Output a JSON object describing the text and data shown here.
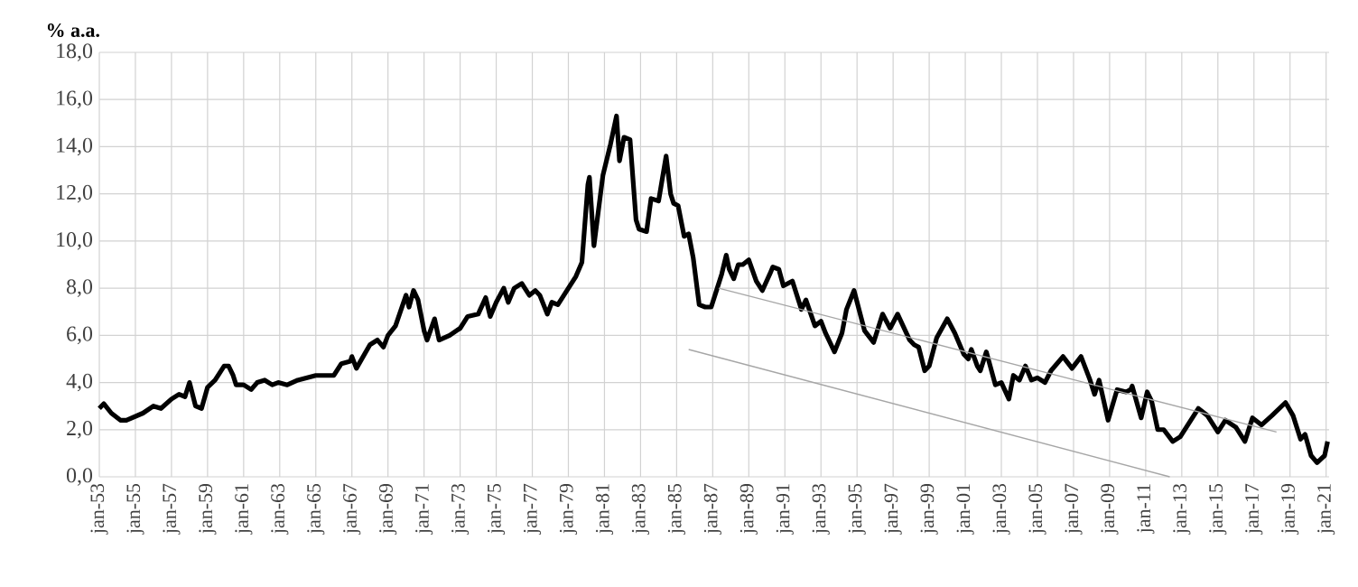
{
  "chart_data": {
    "type": "line",
    "ylabel": "% a.a.",
    "grid": true,
    "xlim": [
      "1953-01",
      "2021-03"
    ],
    "ylim": [
      0,
      18
    ],
    "yticks": [
      {
        "value": 0,
        "label": "0,0"
      },
      {
        "value": 2,
        "label": "2,0"
      },
      {
        "value": 4,
        "label": "4,0"
      },
      {
        "value": 6,
        "label": "6,0"
      },
      {
        "value": 8,
        "label": "8,0"
      },
      {
        "value": 10,
        "label": "10,0"
      },
      {
        "value": 12,
        "label": "12,0"
      },
      {
        "value": 14,
        "label": "14,0"
      },
      {
        "value": 16,
        "label": "16,0"
      },
      {
        "value": 18,
        "label": "18,0"
      }
    ],
    "xticks": [
      {
        "value": "1953-01",
        "label": "jan-53"
      },
      {
        "value": "1955-01",
        "label": "jan-55"
      },
      {
        "value": "1957-01",
        "label": "jan-57"
      },
      {
        "value": "1959-01",
        "label": "jan-59"
      },
      {
        "value": "1961-01",
        "label": "jan-61"
      },
      {
        "value": "1963-01",
        "label": "jan-63"
      },
      {
        "value": "1965-01",
        "label": "jan-65"
      },
      {
        "value": "1967-01",
        "label": "jan-67"
      },
      {
        "value": "1969-01",
        "label": "jan-69"
      },
      {
        "value": "1971-01",
        "label": "jan-71"
      },
      {
        "value": "1973-01",
        "label": "jan-73"
      },
      {
        "value": "1975-01",
        "label": "jan-75"
      },
      {
        "value": "1977-01",
        "label": "jan-77"
      },
      {
        "value": "1979-01",
        "label": "jan-79"
      },
      {
        "value": "1981-01",
        "label": "jan-81"
      },
      {
        "value": "1983-01",
        "label": "jan-83"
      },
      {
        "value": "1985-01",
        "label": "jan-85"
      },
      {
        "value": "1987-01",
        "label": "jan-87"
      },
      {
        "value": "1989-01",
        "label": "jan-89"
      },
      {
        "value": "1991-01",
        "label": "jan-91"
      },
      {
        "value": "1993-01",
        "label": "jan-93"
      },
      {
        "value": "1995-01",
        "label": "jan-95"
      },
      {
        "value": "1997-01",
        "label": "jan-97"
      },
      {
        "value": "1999-01",
        "label": "jan-99"
      },
      {
        "value": "2001-01",
        "label": "jan-01"
      },
      {
        "value": "2003-01",
        "label": "jan-03"
      },
      {
        "value": "2005-01",
        "label": "jan-05"
      },
      {
        "value": "2007-01",
        "label": "jan-07"
      },
      {
        "value": "2009-01",
        "label": "jan-09"
      },
      {
        "value": "2011-01",
        "label": "jan-11"
      },
      {
        "value": "2013-01",
        "label": "jan-13"
      },
      {
        "value": "2015-01",
        "label": "jan-15"
      },
      {
        "value": "2017-01",
        "label": "jan-17"
      },
      {
        "value": "2019-01",
        "label": "jan-19"
      },
      {
        "value": "2021-01",
        "label": "jan-21"
      }
    ],
    "series": [
      {
        "color": "#000000",
        "x": [
          "1953-01",
          "1953-04",
          "1953-09",
          "1954-03",
          "1954-07",
          "1955-06",
          "1956-01",
          "1956-06",
          "1957-01",
          "1957-06",
          "1957-10",
          "1958-01",
          "1958-05",
          "1958-09",
          "1959-01",
          "1959-06",
          "1959-12",
          "1960-03",
          "1960-06",
          "1960-08",
          "1961-01",
          "1961-06",
          "1961-10",
          "1962-03",
          "1962-08",
          "1962-12",
          "1963-06",
          "1964-01",
          "1965-01",
          "1966-01",
          "1966-06",
          "1966-12",
          "1967-01",
          "1967-04",
          "1968-01",
          "1968-06",
          "1968-10",
          "1969-01",
          "1969-06",
          "1970-01",
          "1970-03",
          "1970-06",
          "1970-09",
          "1971-01",
          "1971-03",
          "1971-08",
          "1971-11",
          "1972-06",
          "1973-01",
          "1973-06",
          "1974-01",
          "1974-06",
          "1974-09",
          "1975-01",
          "1975-06",
          "1975-09",
          "1976-01",
          "1976-06",
          "1976-11",
          "1977-03",
          "1977-06",
          "1977-11",
          "1978-02",
          "1978-06",
          "1979-01",
          "1979-06",
          "1979-10",
          "1980-02",
          "1980-03",
          "1980-06",
          "1980-12",
          "1981-05",
          "1981-09",
          "1981-11",
          "1982-02",
          "1982-06",
          "1982-10",
          "1982-12",
          "1983-05",
          "1983-08",
          "1984-01",
          "1984-06",
          "1984-09",
          "1984-11",
          "1985-02",
          "1985-06",
          "1985-09",
          "1985-12",
          "1986-04",
          "1986-08",
          "1986-12",
          "1987-04",
          "1987-07",
          "1987-10",
          "1987-12",
          "1988-03",
          "1988-06",
          "1988-09",
          "1989-01",
          "1989-06",
          "1989-10",
          "1990-03",
          "1990-05",
          "1990-09",
          "1990-12",
          "1991-06",
          "1991-12",
          "1992-03",
          "1992-09",
          "1993-01",
          "1993-04",
          "1993-10",
          "1994-03",
          "1994-06",
          "1994-11",
          "1995-06",
          "1995-12",
          "1996-04",
          "1996-06",
          "1996-11",
          "1997-04",
          "1997-12",
          "1998-03",
          "1998-06",
          "1998-10",
          "1999-01",
          "1999-06",
          "2000-01",
          "2000-06",
          "2000-12",
          "2001-03",
          "2001-05",
          "2001-09",
          "2001-11",
          "2002-03",
          "2002-09",
          "2003-01",
          "2003-06",
          "2003-09",
          "2004-01",
          "2004-05",
          "2004-09",
          "2005-01",
          "2005-06",
          "2005-10",
          "2006-06",
          "2006-12",
          "2007-06",
          "2007-12",
          "2008-03",
          "2008-06",
          "2008-12",
          "2009-06",
          "2009-12",
          "2010-03",
          "2010-04",
          "2010-10",
          "2011-02",
          "2011-05",
          "2011-09",
          "2012-01",
          "2012-07",
          "2012-12",
          "2013-06",
          "2013-12",
          "2014-06",
          "2015-01",
          "2015-06",
          "2016-01",
          "2016-07",
          "2016-12",
          "2017-06",
          "2018-01",
          "2018-10",
          "2019-03",
          "2019-08",
          "2019-11",
          "2020-03",
          "2020-07",
          "2020-12",
          "2021-02"
        ],
        "values": [
          2.9,
          3.1,
          2.7,
          2.4,
          2.4,
          2.7,
          3.0,
          2.9,
          3.3,
          3.5,
          3.4,
          4.0,
          3.0,
          2.9,
          3.8,
          4.1,
          4.7,
          4.7,
          4.3,
          3.9,
          3.9,
          3.7,
          4.0,
          4.1,
          3.9,
          4.0,
          3.9,
          4.1,
          4.3,
          4.3,
          4.8,
          4.9,
          5.1,
          4.6,
          5.6,
          5.8,
          5.5,
          6.0,
          6.4,
          7.7,
          7.2,
          7.9,
          7.5,
          6.2,
          5.8,
          6.7,
          5.8,
          6.0,
          6.3,
          6.8,
          6.9,
          7.6,
          6.8,
          7.4,
          8.0,
          7.4,
          8.0,
          8.2,
          7.7,
          7.9,
          7.7,
          6.9,
          7.4,
          7.3,
          8.0,
          8.5,
          9.1,
          12.4,
          12.7,
          9.8,
          12.8,
          14.1,
          15.3,
          13.4,
          14.4,
          14.3,
          10.9,
          10.5,
          10.4,
          11.8,
          11.7,
          13.6,
          12.0,
          11.6,
          11.5,
          10.2,
          10.3,
          9.3,
          7.3,
          7.2,
          7.2,
          8.0,
          8.6,
          9.4,
          8.8,
          8.4,
          9.0,
          9.0,
          9.2,
          8.3,
          7.9,
          8.6,
          8.9,
          8.8,
          8.1,
          8.3,
          7.1,
          7.5,
          6.4,
          6.6,
          6.1,
          5.3,
          6.1,
          7.1,
          7.9,
          6.2,
          5.7,
          6.5,
          6.9,
          6.3,
          6.9,
          5.8,
          5.6,
          5.5,
          4.5,
          4.7,
          5.9,
          6.7,
          6.1,
          5.2,
          5.0,
          5.4,
          4.7,
          4.5,
          5.3,
          3.9,
          4.0,
          3.3,
          4.3,
          4.1,
          4.7,
          4.1,
          4.2,
          4.0,
          4.5,
          5.1,
          4.6,
          5.1,
          4.1,
          3.5,
          4.1,
          2.4,
          3.7,
          3.6,
          3.7,
          3.85,
          2.5,
          3.6,
          3.2,
          2.0,
          2.0,
          1.5,
          1.7,
          2.3,
          2.9,
          2.6,
          1.9,
          2.4,
          2.1,
          1.5,
          2.5,
          2.2,
          2.6,
          3.15,
          2.6,
          1.6,
          1.8,
          0.9,
          0.6,
          0.9,
          1.5
        ]
      },
      {
        "color": "#a6a6a6",
        "x": [
          "1987-05",
          "2018-04"
        ],
        "values": [
          8.0,
          1.9
        ]
      },
      {
        "color": "#a6a6a6",
        "x": [
          "1985-09",
          "2012-05"
        ],
        "values": [
          5.4,
          0
        ]
      }
    ]
  }
}
